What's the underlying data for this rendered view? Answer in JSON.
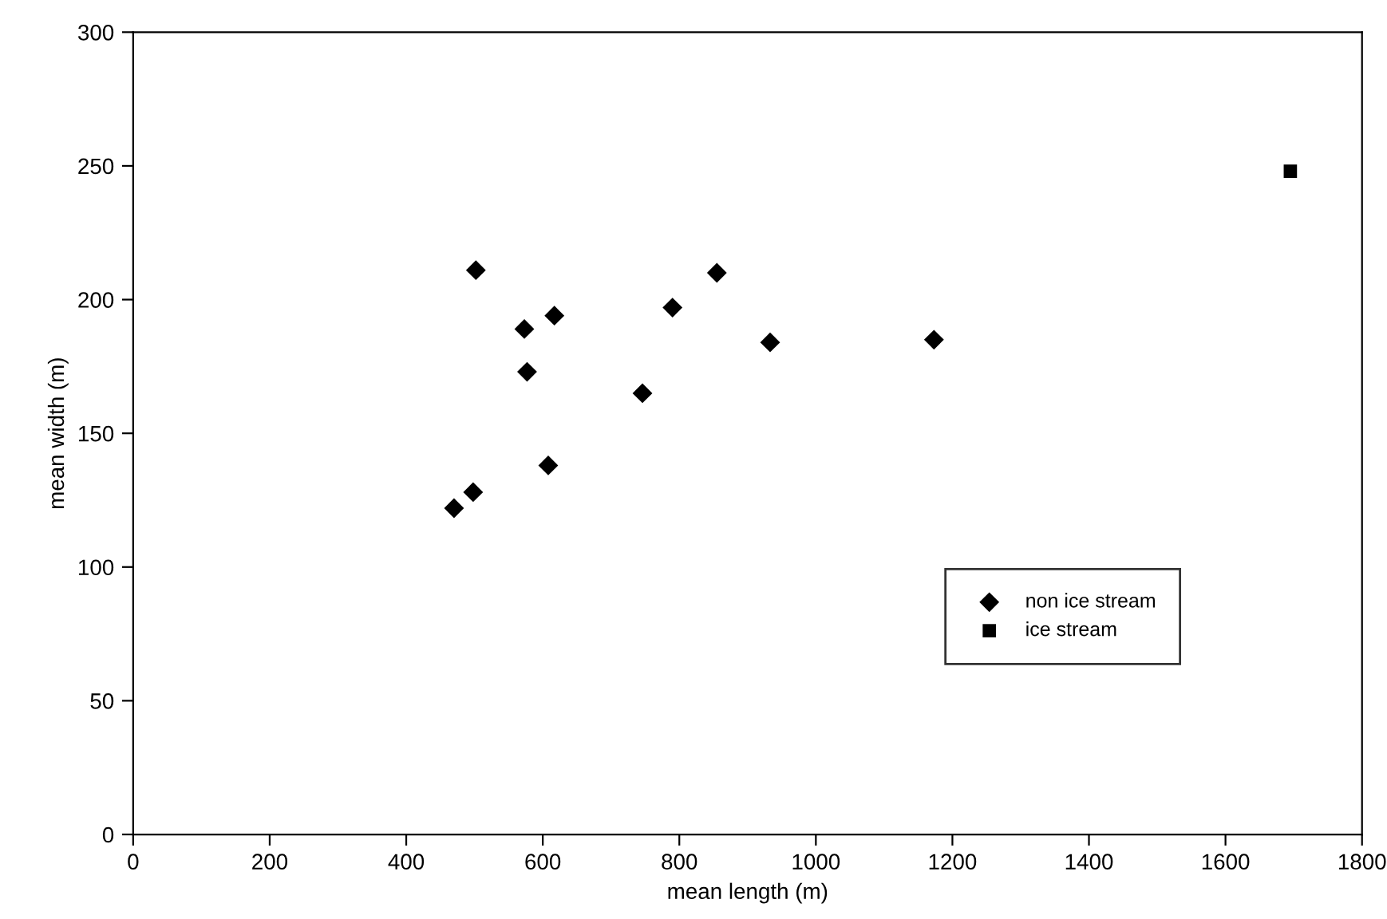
{
  "chart_data": {
    "type": "scatter",
    "xlabel": "mean length (m)",
    "ylabel": "mean width (m)",
    "xlim": [
      0,
      1800
    ],
    "xticks": [
      0,
      200,
      400,
      600,
      800,
      1000,
      1200,
      1400,
      1600,
      1800
    ],
    "ylim": [
      0,
      300
    ],
    "yticks": [
      0,
      50,
      100,
      150,
      200,
      250,
      300
    ],
    "grid": false,
    "legend": "bottom right",
    "series": [
      {
        "name": "non ice stream",
        "color": "#000000",
        "marker": "diamond",
        "x": [
          502,
          573,
          617,
          577,
          790,
          855,
          933,
          746,
          608,
          498,
          470,
          1173
        ],
        "values": [
          211,
          189,
          194,
          173,
          197,
          210,
          184,
          165,
          138,
          128,
          122,
          185
        ]
      },
      {
        "name": "ice stream",
        "color": "#000000",
        "marker": "square",
        "x": [
          1695
        ],
        "values": [
          248
        ]
      }
    ]
  }
}
